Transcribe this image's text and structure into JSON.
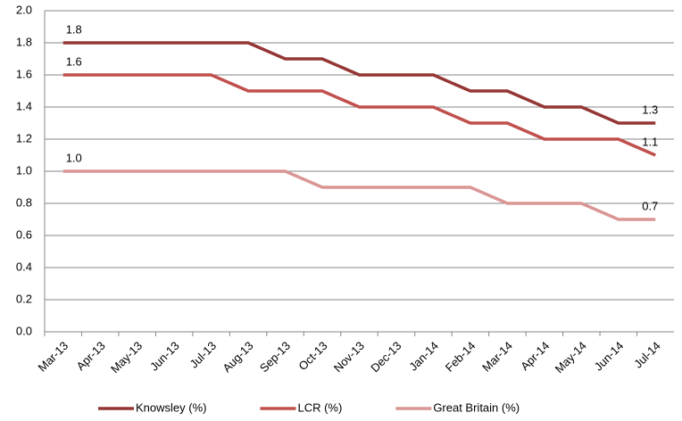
{
  "chart_data": {
    "type": "line",
    "categories": [
      "Mar-13",
      "Apr-13",
      "May-13",
      "Jun-13",
      "Jul-13",
      "Aug-13",
      "Sep-13",
      "Oct-13",
      "Nov-13",
      "Dec-13",
      "Jan-14",
      "Feb-14",
      "Mar-14",
      "Apr-14",
      "May-14",
      "Jun-14",
      "Jul-14"
    ],
    "series": [
      {
        "name": "Knowsley (%)",
        "color": "#943634",
        "values": [
          1.8,
          1.8,
          1.8,
          1.8,
          1.8,
          1.8,
          1.7,
          1.7,
          1.6,
          1.6,
          1.6,
          1.5,
          1.5,
          1.4,
          1.4,
          1.3,
          1.3
        ],
        "value_labels": [
          "1.8",
          null,
          null,
          null,
          null,
          null,
          null,
          null,
          null,
          null,
          null,
          null,
          null,
          null,
          null,
          null,
          "1.3"
        ]
      },
      {
        "name": "LCR (%)",
        "color": "#c0504d",
        "values": [
          1.6,
          1.6,
          1.6,
          1.6,
          1.6,
          1.5,
          1.5,
          1.5,
          1.4,
          1.4,
          1.4,
          1.3,
          1.3,
          1.2,
          1.2,
          1.2,
          1.1
        ],
        "value_labels": [
          "1.6",
          null,
          null,
          null,
          null,
          null,
          null,
          null,
          null,
          null,
          null,
          null,
          null,
          null,
          null,
          null,
          "1.1"
        ]
      },
      {
        "name": "Great Britain (%)",
        "color": "#d99694",
        "values": [
          1.0,
          1.0,
          1.0,
          1.0,
          1.0,
          1.0,
          1.0,
          0.9,
          0.9,
          0.9,
          0.9,
          0.9,
          0.8,
          0.8,
          0.8,
          0.7,
          0.7
        ],
        "value_labels": [
          "1.0",
          null,
          null,
          null,
          null,
          null,
          null,
          null,
          null,
          null,
          null,
          null,
          null,
          null,
          null,
          null,
          "0.7"
        ]
      }
    ],
    "ylim": [
      0,
      2
    ],
    "yticks": [
      {
        "value": 0,
        "label": "0.0"
      },
      0.2,
      0.4,
      0.6,
      0.8,
      {
        "value": 1,
        "label": "1.0"
      },
      1.2,
      1.4,
      1.6,
      1.8,
      {
        "value": 2,
        "label": "2.0"
      }
    ],
    "grid": true,
    "legend": "bottom"
  }
}
